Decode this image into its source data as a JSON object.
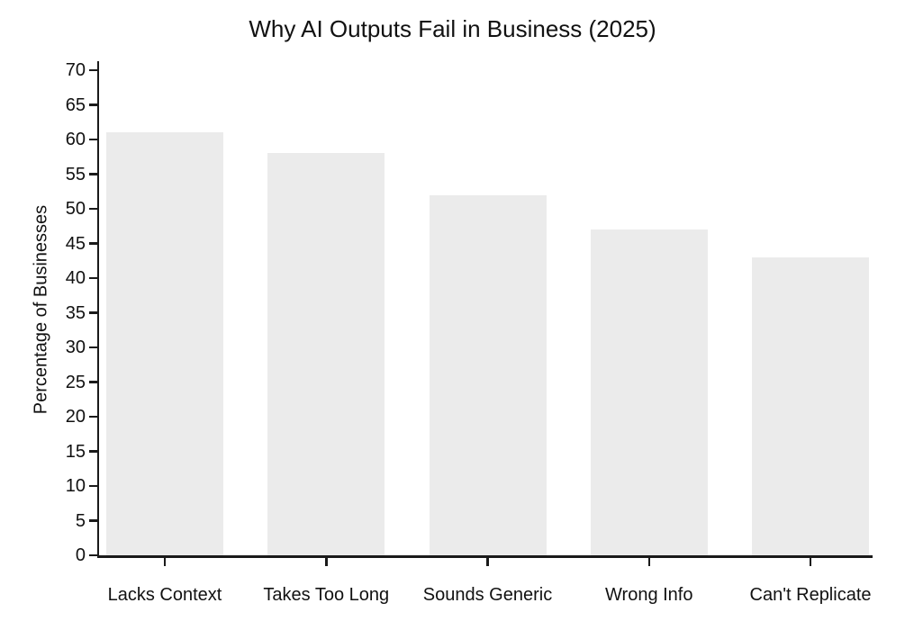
{
  "chart_data": {
    "type": "bar",
    "title": "Why AI Outputs Fail in Business (2025)",
    "categories": [
      "Lacks Context",
      "Takes Too Long",
      "Sounds Generic",
      "Wrong Info",
      "Can't Replicate"
    ],
    "values": [
      61,
      58,
      52,
      47,
      43
    ],
    "xlabel": "",
    "ylabel": "Percentage of Businesses",
    "ylim": [
      0,
      71.3
    ],
    "yticks": [
      0,
      5,
      10,
      15,
      20,
      25,
      30,
      35,
      40,
      45,
      50,
      55,
      60,
      65,
      70
    ],
    "grid": false,
    "legend_position": "none",
    "colors": {
      "bar_fill": "#ebebeb",
      "axis": "#1a1a1a",
      "text": "#111111",
      "background": "#ffffff"
    }
  }
}
